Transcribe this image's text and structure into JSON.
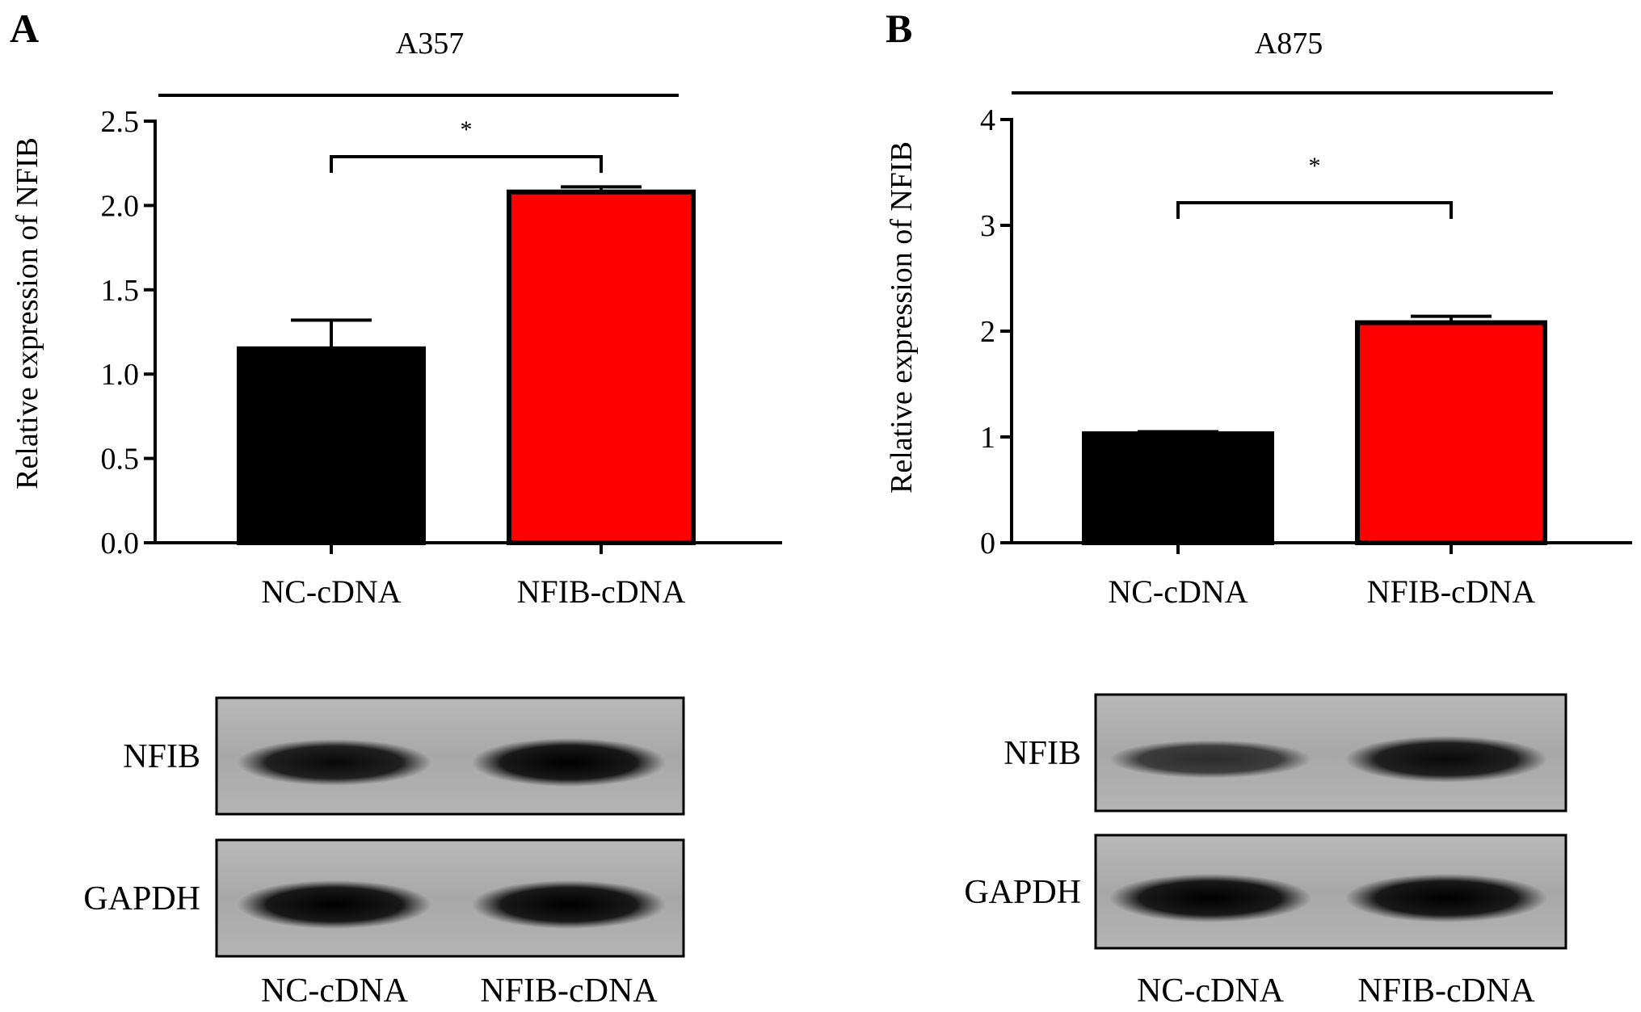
{
  "panels": [
    {
      "letter": "A",
      "chart_data": {
        "type": "bar",
        "title": "A357",
        "xlabel": "",
        "ylabel": "Relative expression of NFIB",
        "categories": [
          "NC-cDNA",
          "NFIB-cDNA"
        ],
        "values": [
          1.15,
          2.08
        ],
        "errors": [
          0.17,
          0.03
        ],
        "ylim": [
          0,
          2.5
        ],
        "yticks": [
          "0.0",
          "0.5",
          "1.0",
          "1.5",
          "2.0",
          "2.5"
        ],
        "bar_colors": [
          "#000000",
          "#ff0000"
        ],
        "significance": {
          "from": 0,
          "to": 1,
          "label": "*"
        },
        "grid": false
      },
      "blot": {
        "rows": [
          {
            "label": "NFIB",
            "intensities": [
              0.95,
              1.0
            ]
          },
          {
            "label": "GAPDH",
            "intensities": [
              1.0,
              1.0
            ]
          }
        ],
        "lanes": [
          "NC-cDNA",
          "NFIB-cDNA"
        ]
      }
    },
    {
      "letter": "B",
      "chart_data": {
        "type": "bar",
        "title": "A875",
        "xlabel": "",
        "ylabel": "Relative expression of NFIB",
        "categories": [
          "NC-cDNA",
          "NFIB-cDNA"
        ],
        "values": [
          1.03,
          2.08
        ],
        "errors": [
          0.02,
          0.06
        ],
        "ylim": [
          0,
          4
        ],
        "yticks": [
          "0",
          "1",
          "2",
          "3",
          "4"
        ],
        "bar_colors": [
          "#000000",
          "#ff0000"
        ],
        "significance": {
          "from": 0,
          "to": 1,
          "label": "*"
        },
        "grid": false
      },
      "blot": {
        "rows": [
          {
            "label": "NFIB",
            "intensities": [
              0.75,
              0.95
            ]
          },
          {
            "label": "GAPDH",
            "intensities": [
              1.0,
              1.0
            ]
          }
        ],
        "lanes": [
          "NC-cDNA",
          "NFIB-cDNA"
        ]
      }
    }
  ]
}
